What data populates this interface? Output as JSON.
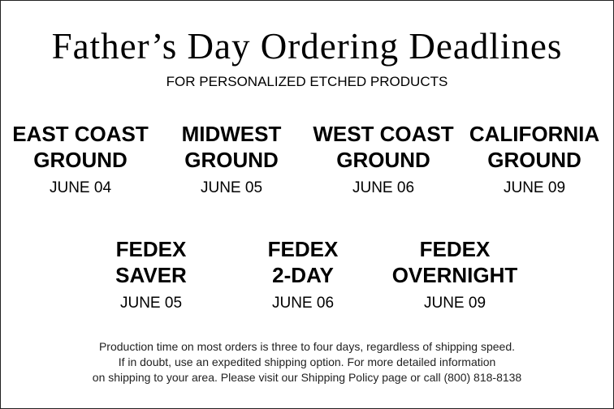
{
  "title": "Father’s Day Ordering Deadlines",
  "subtitle": "FOR PERSONALIZED ETCHED PRODUCTS",
  "ground": [
    {
      "line1": "EAST COAST",
      "line2": "GROUND",
      "date": "JUNE 04"
    },
    {
      "line1": "MIDWEST",
      "line2": "GROUND",
      "date": "JUNE 05"
    },
    {
      "line1": "WEST COAST",
      "line2": "GROUND",
      "date": "JUNE 06"
    },
    {
      "line1": "CALIFORNIA",
      "line2": "GROUND",
      "date": "JUNE 09"
    }
  ],
  "fedex": [
    {
      "line1": "FEDEX",
      "line2": "SAVER",
      "date": "JUNE 05"
    },
    {
      "line1": "FEDEX",
      "line2": "2-DAY",
      "date": "JUNE 06"
    },
    {
      "line1": "FEDEX",
      "line2": "OVERNIGHT",
      "date": "JUNE 09"
    }
  ],
  "footer": [
    "Production time on most orders is three to four days, regardless of shipping speed.",
    "If in doubt, use an expedited shipping option. For more detailed information",
    "on shipping to your area. Please visit our Shipping Policy page or call (800) 818-8138"
  ]
}
